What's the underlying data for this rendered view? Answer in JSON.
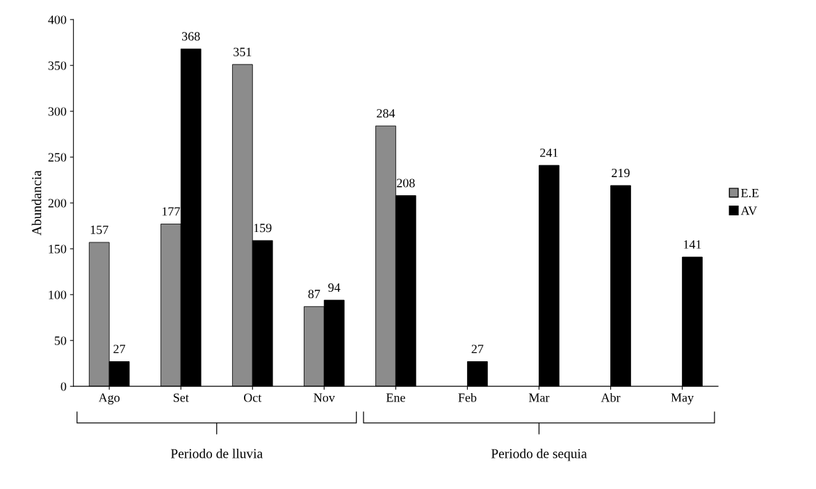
{
  "chart_data": {
    "type": "bar",
    "ylabel": "Abundancia",
    "categories": [
      "Ago",
      "Set",
      "Oct",
      "Nov",
      "Ene",
      "Feb",
      "Mar",
      "Abr",
      "May"
    ],
    "series": [
      {
        "name": "E.E",
        "color": "#8c8c8c",
        "values": [
          157,
          177,
          351,
          87,
          284,
          null,
          null,
          null,
          null
        ]
      },
      {
        "name": "AV",
        "color": "#000000",
        "values": [
          27,
          368,
          159,
          94,
          208,
          27,
          241,
          219,
          141
        ]
      }
    ],
    "ylim": [
      0,
      400
    ],
    "yticks": [
      0,
      50,
      100,
      150,
      200,
      250,
      300,
      350,
      400
    ],
    "data_labels": true,
    "grid": false,
    "legend": "right",
    "annotations": [
      "Periodo de lluvia",
      "Periodo de sequia"
    ]
  }
}
